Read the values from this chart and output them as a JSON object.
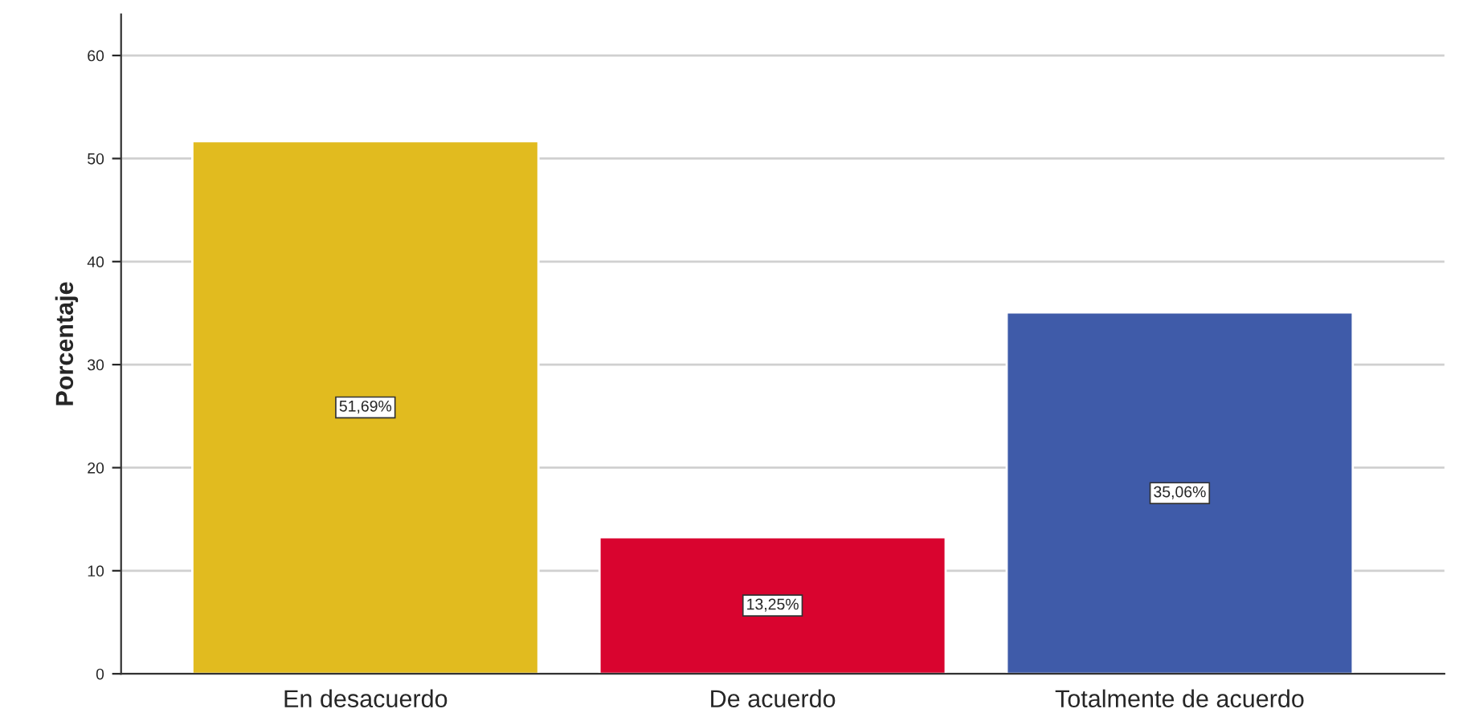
{
  "chart_data": {
    "type": "bar",
    "ylabel": "Porcentaje",
    "categories": [
      "En desacuerdo",
      "De acuerdo",
      "Totalmente de acuerdo"
    ],
    "values": [
      51.69,
      13.25,
      35.06
    ],
    "colors": [
      "#e1bb1f",
      "#d9042f",
      "#3f5ba9"
    ],
    "value_labels": [
      "51,69%",
      "13,25%",
      "35,06%"
    ],
    "ylim": [
      0,
      64
    ],
    "yticks": [
      0,
      10,
      20,
      30,
      40,
      50,
      60
    ],
    "grid": "y",
    "legend": false
  }
}
